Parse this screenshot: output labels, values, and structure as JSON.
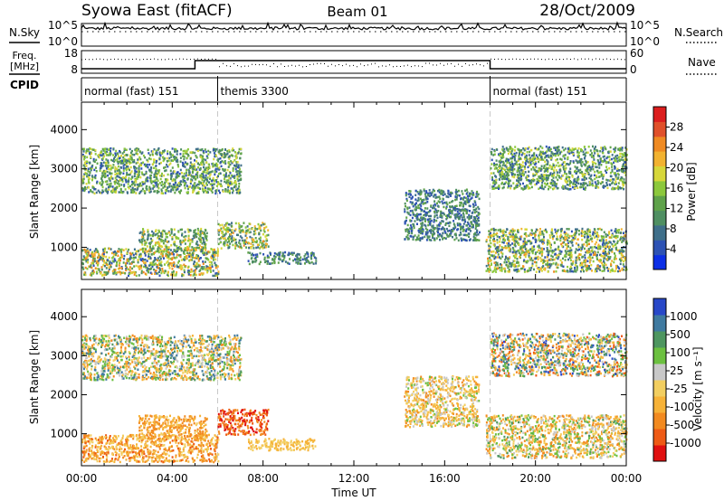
{
  "header": {
    "station": "Syowa East (fitACF)",
    "beam": "Beam 01",
    "date": "28/Oct/2009"
  },
  "strip_labels": {
    "nsky": "N.Sky",
    "nsearch": "N.Search",
    "freq_line1": "Freq.",
    "freq_line2": "[MHz]",
    "nave": "Nave",
    "cpid": "CPID",
    "noise_tick_top": "10^5",
    "noise_tick_bottom": "10^0",
    "noise_tick_top_right": "10^5",
    "noise_tick_bottom_right": "10^0",
    "freq_tick_top": "18",
    "freq_tick_bottom": "8",
    "nave_tick_top": "60",
    "nave_tick_bottom": "0"
  },
  "cpid_segments": [
    {
      "label": "normal (fast) 151",
      "start_h": 0,
      "end_h": 6
    },
    {
      "label": "themis 3300",
      "start_h": 6,
      "end_h": 18
    },
    {
      "label": "normal (fast) 151",
      "start_h": 18,
      "end_h": 24
    }
  ],
  "x_axis": {
    "title": "Time UT",
    "ticks": [
      "00:00",
      "04:00",
      "08:00",
      "12:00",
      "16:00",
      "20:00",
      "00:00"
    ],
    "tick_hours": [
      0,
      4,
      8,
      12,
      16,
      20,
      24
    ]
  },
  "chart_data": [
    {
      "type": "heatmap",
      "quantity": "Power",
      "ylabel": "Slant Range [km]",
      "xlabel": "Time UT",
      "xlim_hours": [
        0,
        24
      ],
      "ylim": [
        180,
        4700
      ],
      "yticks": [
        1000,
        2000,
        3000,
        4000
      ],
      "colorbar": {
        "label": "Power [dB]",
        "ticks": [
          "28",
          "24",
          "20",
          "16",
          "12",
          "8",
          "4"
        ],
        "range": [
          0,
          32
        ],
        "colors": [
          "#0c2fe6",
          "#2d52b4",
          "#3f6f8a",
          "#4f8f62",
          "#5fa24a",
          "#8cc83c",
          "#d7d73a",
          "#f2b230",
          "#ef8a22",
          "#e0502a",
          "#dc1e1e"
        ]
      },
      "regions": [
        {
          "t0": 0.0,
          "t1": 6.0,
          "r0": 300,
          "r1": 1000,
          "v0": 4,
          "v1": 26
        },
        {
          "t0": 2.5,
          "t1": 5.5,
          "r0": 900,
          "r1": 1500,
          "v0": 6,
          "v1": 22
        },
        {
          "t0": 6.0,
          "t1": 8.2,
          "r0": 1000,
          "r1": 1650,
          "v0": 6,
          "v1": 24
        },
        {
          "t0": 7.3,
          "t1": 10.3,
          "r0": 600,
          "r1": 900,
          "v0": 4,
          "v1": 14
        },
        {
          "t0": 0.0,
          "t1": 7.0,
          "r0": 2400,
          "r1": 3550,
          "v0": 4,
          "v1": 20
        },
        {
          "t0": 14.2,
          "t1": 17.5,
          "r0": 1200,
          "r1": 2500,
          "v0": 3,
          "v1": 14
        },
        {
          "t0": 17.8,
          "t1": 24.0,
          "r0": 400,
          "r1": 1500,
          "v0": 4,
          "v1": 24
        },
        {
          "t0": 18.0,
          "t1": 24.0,
          "r0": 2500,
          "r1": 3600,
          "v0": 4,
          "v1": 20
        }
      ]
    },
    {
      "type": "heatmap",
      "quantity": "Velocity",
      "ylabel": "Slant Range [km]",
      "xlabel": "Time UT",
      "xlim_hours": [
        0,
        24
      ],
      "ylim": [
        180,
        4700
      ],
      "yticks": [
        1000,
        2000,
        3000,
        4000
      ],
      "colorbar": {
        "label": "Velocity [m s⁻¹]",
        "ticks": [
          "1000",
          "500",
          "100",
          "25",
          "-25",
          "-100",
          "-500",
          "-1000"
        ],
        "range": [
          -1000,
          1000
        ],
        "colors": [
          "#e01010",
          "#ee5a15",
          "#f28a20",
          "#f6b238",
          "#f2ce60",
          "#c8c8c8",
          "#6cc040",
          "#4e9660",
          "#3f7aa0",
          "#2848c8"
        ]
      },
      "regions": [
        {
          "t0": 0.0,
          "t1": 6.0,
          "r0": 300,
          "r1": 1000,
          "v0": -700,
          "v1": -60
        },
        {
          "t0": 2.5,
          "t1": 5.5,
          "r0": 900,
          "r1": 1500,
          "v0": -600,
          "v1": -150
        },
        {
          "t0": 6.0,
          "t1": 8.2,
          "r0": 1000,
          "r1": 1650,
          "v0": -1000,
          "v1": -400
        },
        {
          "t0": 7.3,
          "t1": 10.3,
          "r0": 600,
          "r1": 900,
          "v0": -300,
          "v1": -60
        },
        {
          "t0": 0.0,
          "t1": 7.0,
          "r0": 2400,
          "r1": 3550,
          "v0": -600,
          "v1": 800
        },
        {
          "t0": 14.2,
          "t1": 17.5,
          "r0": 1200,
          "r1": 2500,
          "v0": -500,
          "v1": 300
        },
        {
          "t0": 17.8,
          "t1": 24.0,
          "r0": 400,
          "r1": 1500,
          "v0": -600,
          "v1": 500
        },
        {
          "t0": 18.0,
          "t1": 24.0,
          "r0": 2500,
          "r1": 3600,
          "v0": -800,
          "v1": 900
        }
      ]
    }
  ]
}
